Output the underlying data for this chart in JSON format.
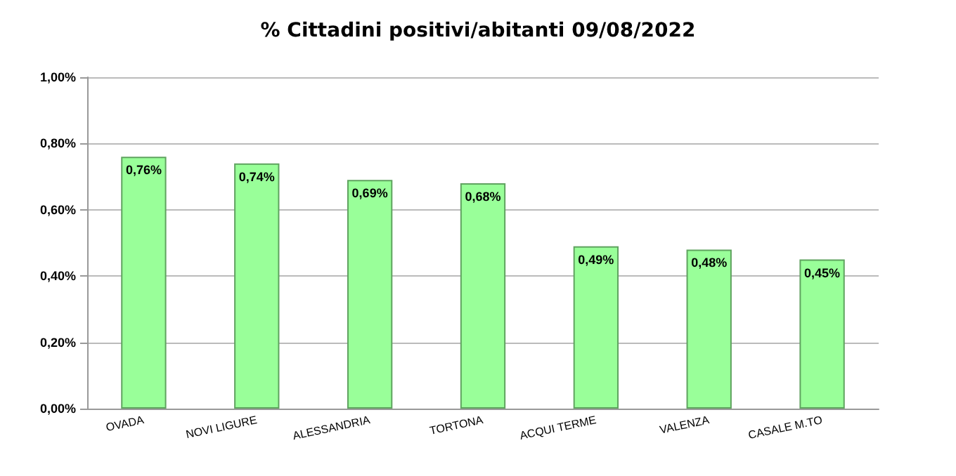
{
  "chart_data": {
    "type": "bar",
    "title": "% Cittadini positivi/abitanti 09/08/2022",
    "categories": [
      "OVADA",
      "NOVI LIGURE",
      "ALESSANDRIA",
      "TORTONA",
      "ACQUI TERME",
      "VALENZA",
      "CASALE M.TO"
    ],
    "values": [
      0.76,
      0.74,
      0.69,
      0.68,
      0.49,
      0.48,
      0.45
    ],
    "value_labels": [
      "0,76%",
      "0,74%",
      "0,69%",
      "0,68%",
      "0,49%",
      "0,48%",
      "0,45%"
    ],
    "color": "#99ff99",
    "ylim": [
      0,
      1
    ],
    "yticks": [
      {
        "value": 0,
        "label": "0,00%"
      },
      {
        "value": 0.2,
        "label": "0,20%"
      },
      {
        "value": 0.4,
        "label": "0,40%"
      },
      {
        "value": 0.6,
        "label": "0,60%"
      },
      {
        "value": 0.8,
        "label": "0,80%"
      },
      {
        "value": 1,
        "label": "1,00%"
      }
    ],
    "grid": "y"
  }
}
